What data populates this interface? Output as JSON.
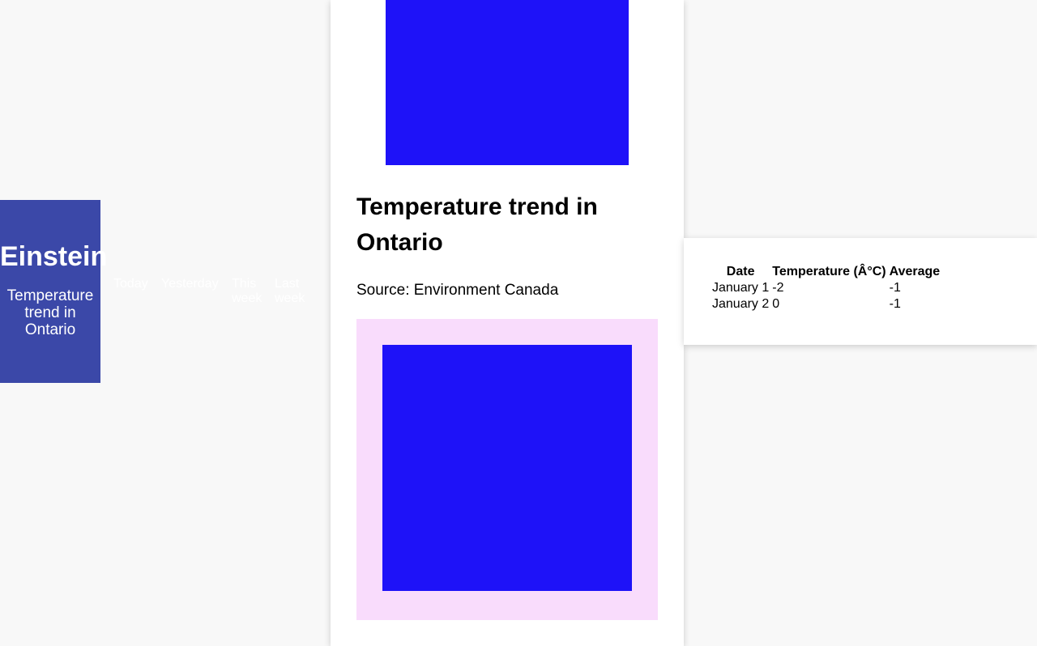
{
  "header": {
    "brand": "Einstein",
    "tagline": "Temperature trend in Ontario",
    "bg_color": "#3b48a8"
  },
  "nav": {
    "items": [
      "Today",
      "Yesterday",
      "This week",
      "Last week"
    ]
  },
  "article": {
    "title": "Temperature trend in Ontario",
    "source": "Source: Environment Canada",
    "image_color": "#1e12f8",
    "frame_color": "#f9dcfc"
  },
  "table": {
    "headers": [
      "Date",
      "Temperature (Â°C)",
      "Average"
    ],
    "rows": [
      [
        "January 1",
        "-2",
        "-1"
      ],
      [
        "January 2",
        "0",
        "-1"
      ]
    ]
  }
}
